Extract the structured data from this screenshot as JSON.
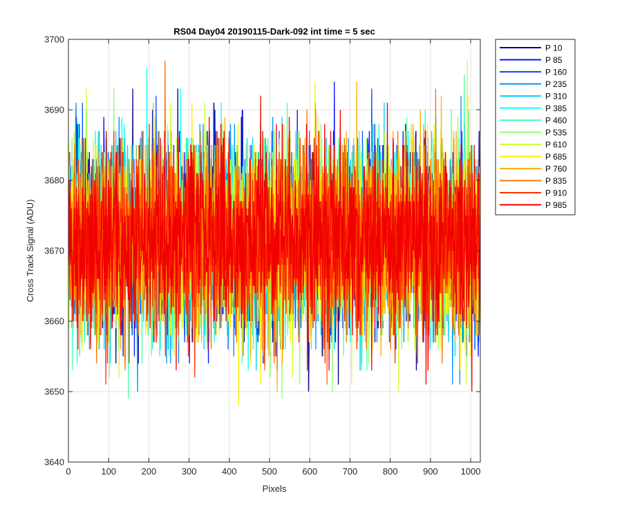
{
  "chart_data": {
    "type": "line",
    "title": "RS04 Day04 20190115-Dark-092 int time = 5 sec",
    "xlabel": "Pixels",
    "ylabel": "Cross Track Signal (ADU)",
    "xlim": [
      0,
      1024
    ],
    "ylim": [
      3640,
      3700
    ],
    "xticks": [
      0,
      100,
      200,
      300,
      400,
      500,
      600,
      700,
      800,
      900,
      1000
    ],
    "yticks": [
      3640,
      3650,
      3660,
      3670,
      3680,
      3690,
      3700
    ],
    "grid": true,
    "legend_position": "outside-top-right",
    "x_points": 1024,
    "noise_profile": {
      "mean": 3671.5,
      "std": 6.5,
      "min": 3641,
      "max": 3699
    },
    "series": [
      {
        "name": "P 10",
        "color": "#00008F"
      },
      {
        "name": "P 85",
        "color": "#0010FF"
      },
      {
        "name": "P 160",
        "color": "#0050FF"
      },
      {
        "name": "P 235",
        "color": "#0090FF"
      },
      {
        "name": "P 310",
        "color": "#00D0FF"
      },
      {
        "name": "P 385",
        "color": "#10FFEF"
      },
      {
        "name": "P 460",
        "color": "#50FFAF"
      },
      {
        "name": "P 535",
        "color": "#90FF6F"
      },
      {
        "name": "P 610",
        "color": "#D0FF2F"
      },
      {
        "name": "P 685",
        "color": "#FFEF00"
      },
      {
        "name": "P 760",
        "color": "#FFAF00"
      },
      {
        "name": "P 835",
        "color": "#FF7000"
      },
      {
        "name": "P 910",
        "color": "#FF3000"
      },
      {
        "name": "P 985",
        "color": "#F00000"
      }
    ]
  }
}
